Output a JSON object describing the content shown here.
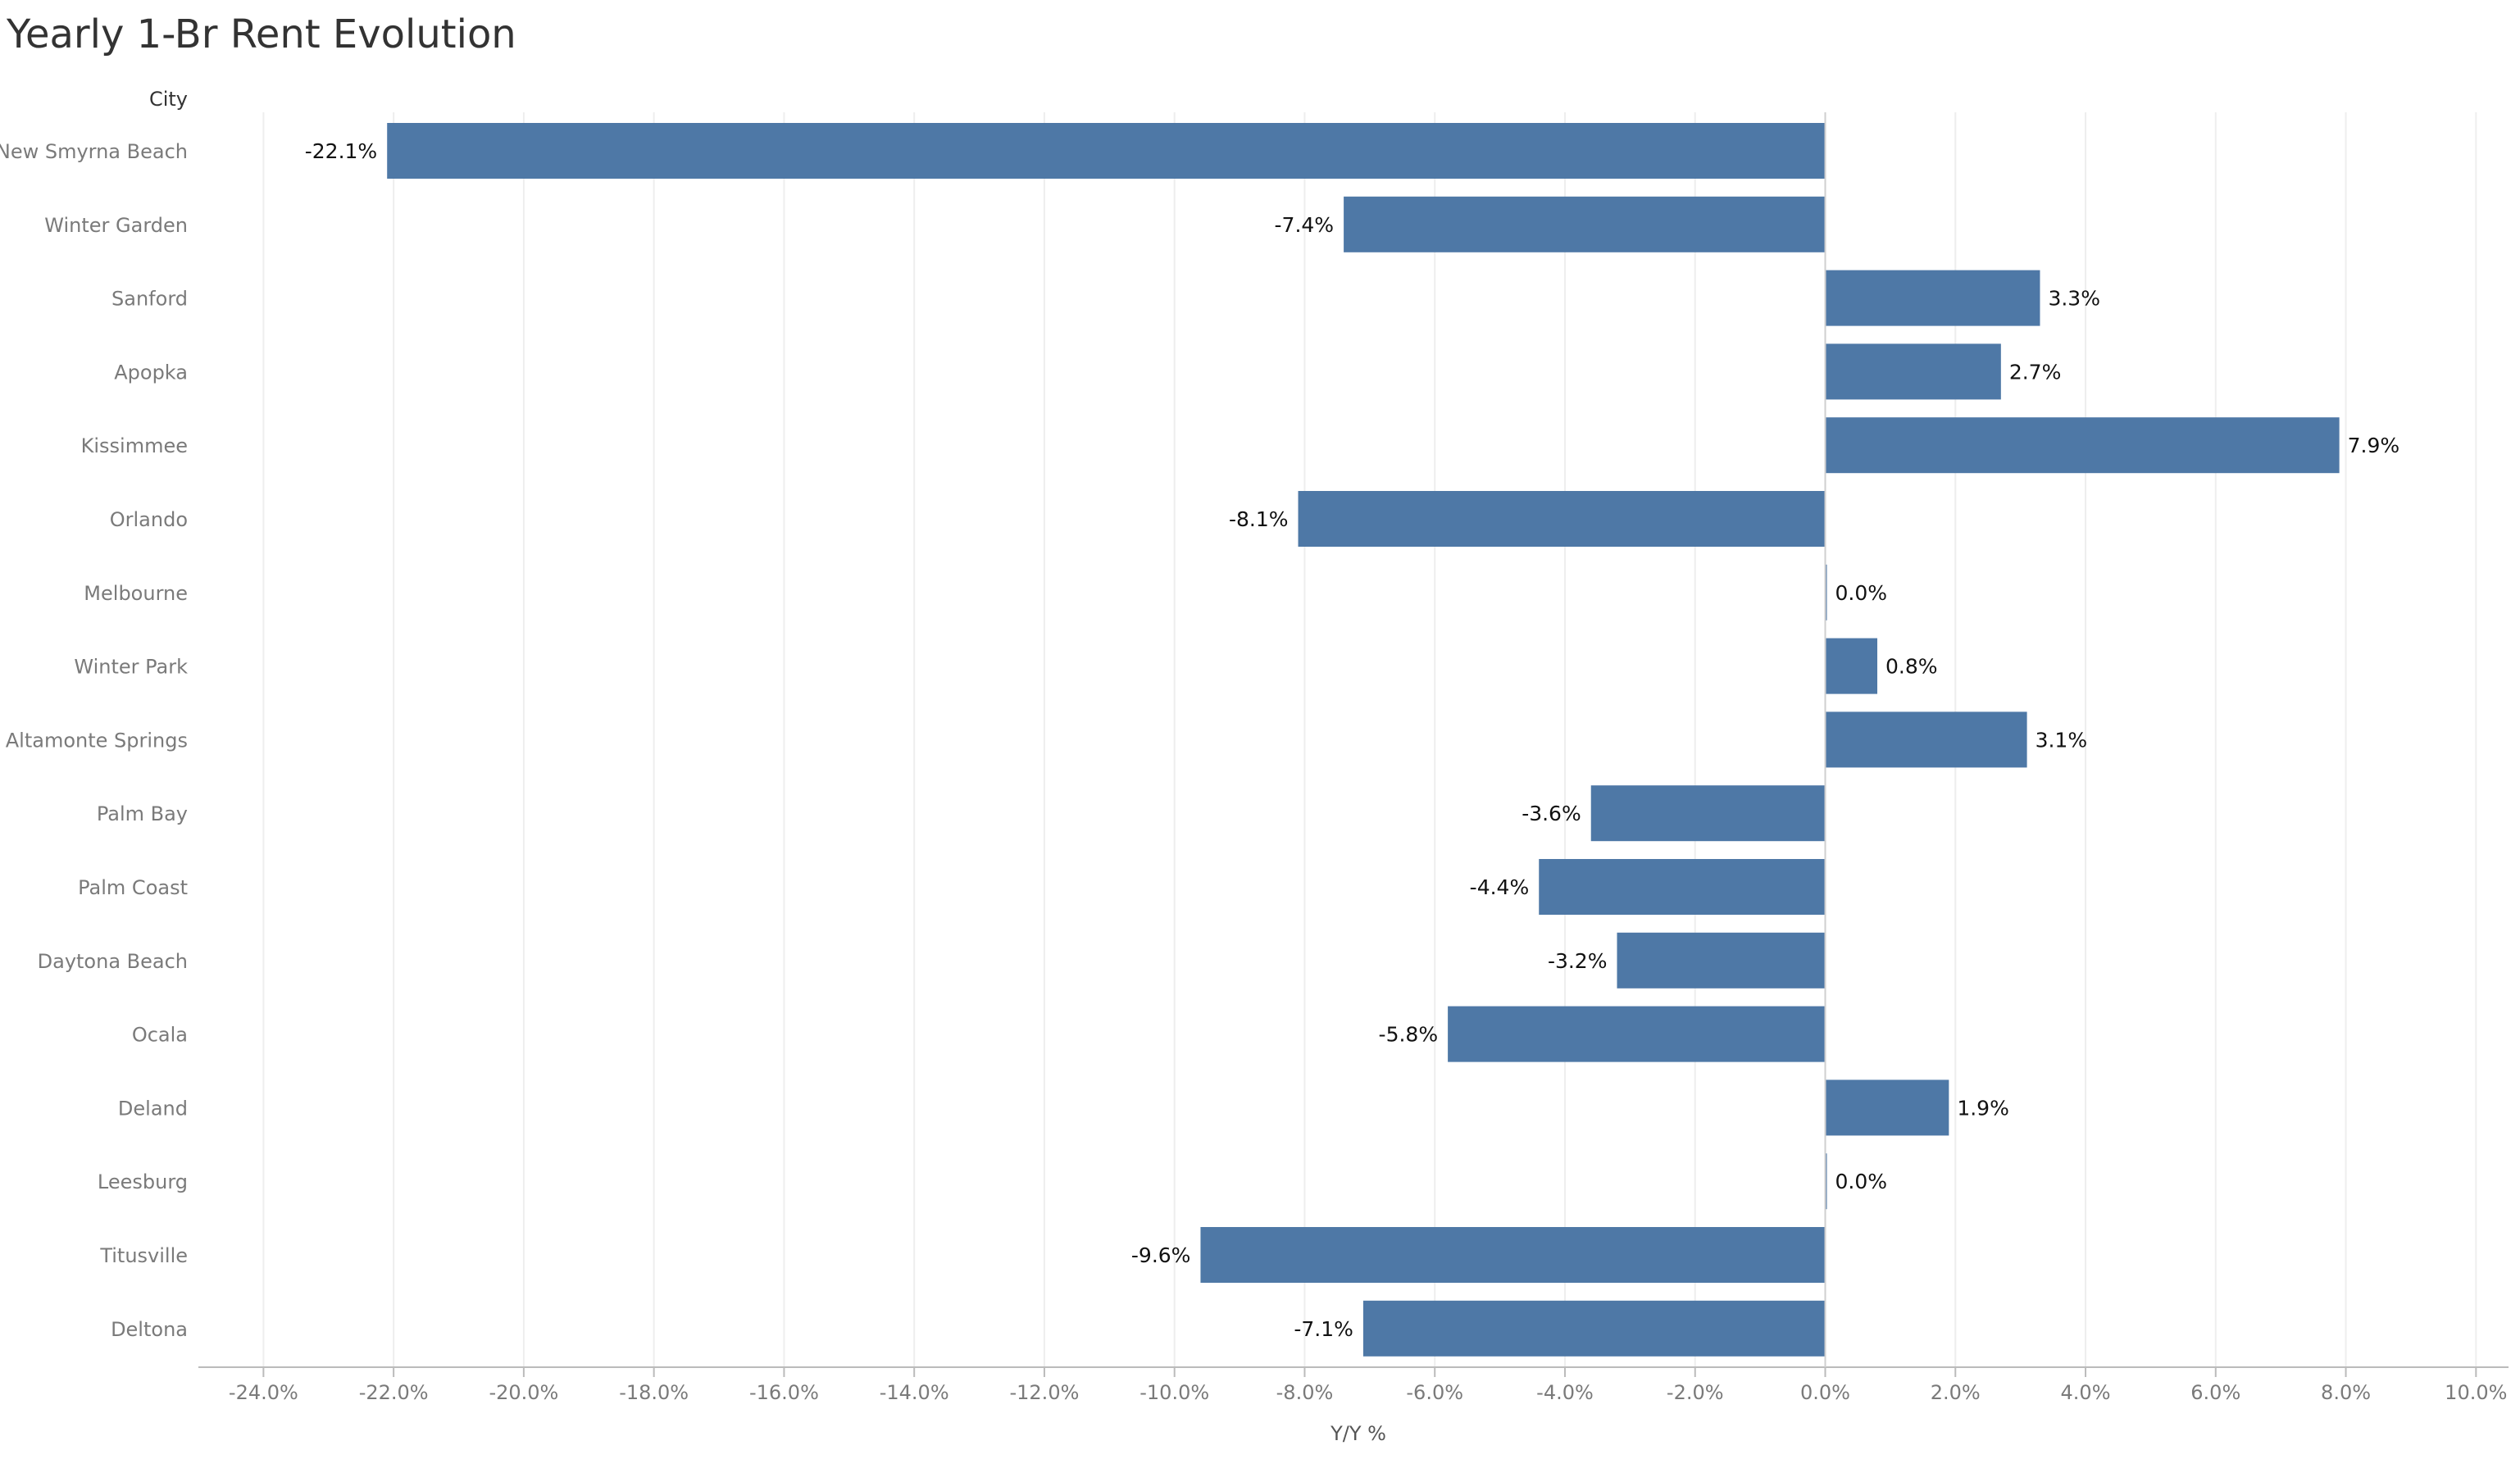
{
  "colors": {
    "bar": "#4e78a6",
    "grid": "#eeeeee",
    "zero_line": "#cfcfcf",
    "axis": "#bbbbbb"
  },
  "chart_data": {
    "type": "bar",
    "orientation": "horizontal",
    "title": "Yearly 1-Br Rent Evolution",
    "row_header": "City",
    "xlabel": "Y/Y %",
    "xlim": [
      -25,
      10.5
    ],
    "xticks": [
      -24,
      -22,
      -20,
      -18,
      -16,
      -14,
      -12,
      -10,
      -8,
      -6,
      -4,
      -2,
      0,
      2,
      4,
      6,
      8,
      10
    ],
    "xtick_labels": [
      "-24.0%",
      "-22.0%",
      "-20.0%",
      "-18.0%",
      "-16.0%",
      "-14.0%",
      "-12.0%",
      "-10.0%",
      "-8.0%",
      "-6.0%",
      "-4.0%",
      "-2.0%",
      "0.0%",
      "2.0%",
      "4.0%",
      "6.0%",
      "8.0%",
      "10.0%"
    ],
    "grid": true,
    "categories": [
      "New Smyrna Beach",
      "Winter Garden",
      "Sanford",
      "Apopka",
      "Kissimmee",
      "Orlando",
      "Melbourne",
      "Winter Park",
      "Altamonte Springs",
      "Palm Bay",
      "Palm Coast",
      "Daytona Beach",
      "Ocala",
      "Deland",
      "Leesburg",
      "Titusville",
      "Deltona"
    ],
    "values": [
      -22.1,
      -7.4,
      3.3,
      2.7,
      7.9,
      -8.1,
      0.0,
      0.8,
      3.1,
      -3.6,
      -4.4,
      -3.2,
      -5.8,
      1.9,
      0.0,
      -9.6,
      -7.1
    ],
    "value_labels": [
      "-22.1%",
      "-7.4%",
      "3.3%",
      "2.7%",
      "7.9%",
      "-8.1%",
      "0.0%",
      "0.8%",
      "3.1%",
      "-3.6%",
      "-4.4%",
      "-3.2%",
      "-5.8%",
      "1.9%",
      "0.0%",
      "-9.6%",
      "-7.1%"
    ]
  }
}
